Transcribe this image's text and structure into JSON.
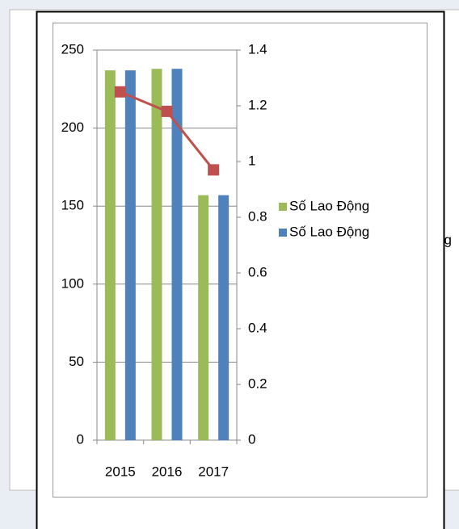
{
  "chart_data": {
    "type": "bar",
    "categories": [
      "2015",
      "2016",
      "2017"
    ],
    "series": [
      {
        "name": "Số Lao Động",
        "color": "#9bbb59",
        "values": [
          237,
          238,
          157
        ]
      },
      {
        "name": "Số Lao Động",
        "color": "#4f81bd",
        "values": [
          237,
          238,
          157
        ]
      },
      {
        "type": "line",
        "axis": "y2",
        "color": "#c0504d",
        "values": [
          1.25,
          1.18,
          0.97
        ]
      }
    ],
    "ylim": [
      0,
      250
    ],
    "yticks": [
      0,
      50,
      100,
      150,
      200,
      250
    ],
    "y2lim": [
      0,
      1.4
    ],
    "y2ticks": [
      0,
      0.2,
      0.4,
      0.6,
      0.8,
      1,
      1.2,
      1.4
    ],
    "grid": true,
    "legend": "right"
  },
  "background_text": "ng"
}
